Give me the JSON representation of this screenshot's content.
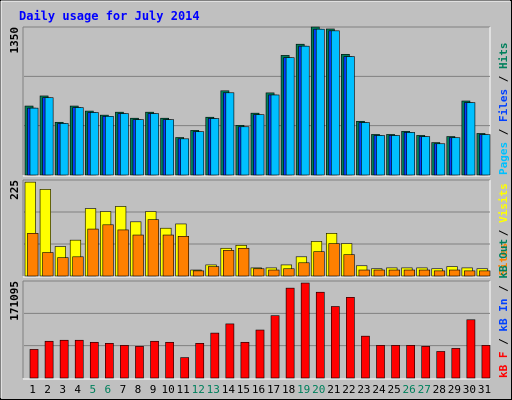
{
  "title": "Daily usage for July 2014",
  "legend_separator": " / ",
  "chart_data": [
    {
      "type": "bar",
      "ylim": [
        0,
        1350
      ],
      "yticks": [
        1350
      ],
      "grid": true,
      "series": [
        {
          "name": "Hits",
          "color": "#00805C",
          "values": [
            629,
            721,
            481,
            629,
            583,
            546,
            573,
            518,
            573,
            518,
            342,
            407,
            527,
            768,
            453,
            564,
            749,
            1091,
            1193,
            1350,
            1332,
            1101,
            490,
            370,
            370,
            398,
            361,
            296,
            351,
            675,
            379
          ]
        },
        {
          "name": "Files",
          "color": "#0040FF",
          "values": [
            610,
            705,
            470,
            615,
            570,
            535,
            560,
            505,
            560,
            505,
            330,
            395,
            515,
            750,
            440,
            550,
            730,
            1070,
            1175,
            1330,
            1315,
            1080,
            478,
            360,
            360,
            388,
            350,
            285,
            340,
            660,
            368
          ]
        },
        {
          "name": "Pages",
          "color": "#00C0FF",
          "values": [
            610,
            705,
            470,
            615,
            570,
            535,
            560,
            505,
            560,
            505,
            330,
            395,
            515,
            750,
            440,
            550,
            730,
            1070,
            1175,
            1330,
            1315,
            1080,
            478,
            360,
            360,
            388,
            350,
            285,
            340,
            660,
            368
          ]
        }
      ]
    },
    {
      "type": "bar",
      "ylim": [
        0,
        225
      ],
      "yticks": [
        225
      ],
      "grid": true,
      "series": [
        {
          "name": "Visits",
          "color": "#FFFF00",
          "values": [
            220,
            203,
            69,
            84,
            158,
            151,
            163,
            127,
            151,
            112,
            122,
            14,
            26,
            65,
            72,
            19,
            19,
            26,
            45,
            81,
            100,
            76,
            24,
            17,
            19,
            19,
            19,
            17,
            22,
            19,
            17
          ]
        },
        {
          "name": "Sites",
          "color": "#FF8000",
          "values": [
            100,
            55,
            43,
            45,
            110,
            120,
            108,
            96,
            132,
            96,
            93,
            12,
            22,
            60,
            65,
            17,
            14,
            17,
            31,
            57,
            76,
            50,
            14,
            14,
            14,
            14,
            14,
            12,
            14,
            12,
            12
          ]
        }
      ]
    },
    {
      "type": "bar",
      "ylim": [
        0,
        171095
      ],
      "yticks": [
        171095
      ],
      "grid": true,
      "categories": [
        "1",
        "2",
        "3",
        "4",
        "5",
        "6",
        "7",
        "8",
        "9",
        "10",
        "11",
        "12",
        "13",
        "14",
        "15",
        "16",
        "17",
        "18",
        "19",
        "20",
        "21",
        "22",
        "23",
        "24",
        "25",
        "26",
        "27",
        "28",
        "29",
        "30",
        "31"
      ],
      "x_label_colors": [
        "#000000",
        "#000000",
        "#000000",
        "#000000",
        "#00805C",
        "#00805C",
        "#000000",
        "#000000",
        "#000000",
        "#000000",
        "#000000",
        "#00805C",
        "#00805C",
        "#000000",
        "#000000",
        "#000000",
        "#000000",
        "#000000",
        "#00805C",
        "#00805C",
        "#000000",
        "#000000",
        "#000000",
        "#000000",
        "#000000",
        "#00805C",
        "#00805C",
        "#000000",
        "#000000",
        "#000000",
        "#000000"
      ],
      "series": [
        {
          "name": "kB Out",
          "color": "#00805C",
          "values": [
            0,
            0,
            0,
            0,
            0,
            0,
            0,
            0,
            0,
            0,
            0,
            0,
            0,
            0,
            0,
            0,
            0,
            0,
            0,
            0,
            0,
            0,
            0,
            0,
            0,
            0,
            0,
            0,
            0,
            0,
            0
          ]
        },
        {
          "name": "kB In",
          "color": "#0040FF",
          "values": [
            0,
            0,
            0,
            0,
            0,
            0,
            0,
            0,
            0,
            0,
            0,
            0,
            0,
            0,
            0,
            0,
            0,
            0,
            0,
            0,
            0,
            0,
            0,
            0,
            0,
            0,
            0,
            0,
            0,
            0,
            0
          ]
        },
        {
          "name": "kB F",
          "color": "#FF0000",
          "values": [
            50400,
            64800,
            66600,
            66600,
            63000,
            61200,
            57600,
            55800,
            64800,
            63000,
            36000,
            61200,
            79200,
            95400,
            63000,
            84600,
            109900,
            158500,
            167500,
            151300,
            126100,
            142300,
            73800,
            57600,
            57600,
            57600,
            55800,
            46800,
            52200,
            102700,
            57600
          ]
        }
      ]
    }
  ]
}
